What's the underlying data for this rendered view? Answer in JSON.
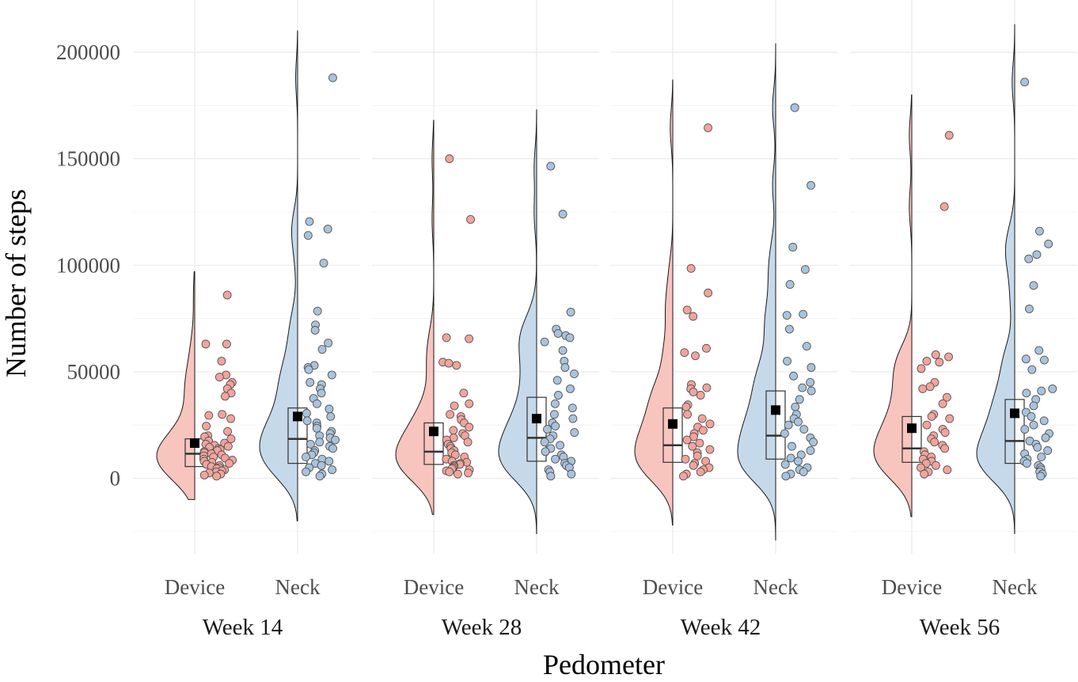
{
  "chart_data": {
    "type": "raincloud",
    "xlabel": "Pedometer",
    "ylabel": "Number of steps",
    "ylim": [
      -25000,
      215000
    ],
    "yticks": [
      0,
      50000,
      100000,
      150000,
      200000
    ],
    "ytick_labels": [
      "0",
      "50000",
      "100000",
      "150000",
      "200000"
    ],
    "groups": [
      "Device",
      "Neck"
    ],
    "group_colors": {
      "Device": "#f8c4be",
      "Neck": "#c6d9ea"
    },
    "point_colors": {
      "Device": "#f2a49c",
      "Neck": "#a9c3dc"
    },
    "panels": [
      {
        "label": "Week 14",
        "series": [
          {
            "group": "Device",
            "mean": 16500,
            "median": 11500,
            "q1": 5500,
            "q3": 18500,
            "violin_min": -10000,
            "violin_max": 97000,
            "points": [
              86000,
              63000,
              63000,
              55000,
              48500,
              47500,
              45000,
              44000,
              42000,
              40000,
              38500,
              30000,
              29500,
              28000,
              24500,
              22000,
              20000,
              19500,
              18500,
              17500,
              16500,
              16000,
              15500,
              15000,
              14500,
              14000,
              13500,
              13000,
              12500,
              12000,
              11500,
              11000,
              10500,
              10000,
              9500,
              9000,
              8500,
              8000,
              7500,
              7000,
              6500,
              6000,
              5500,
              5000,
              4500,
              4000,
              3500,
              3000,
              2500,
              2000,
              1500,
              1000
            ]
          },
          {
            "group": "Neck",
            "mean": 29000,
            "median": 18500,
            "q1": 7000,
            "q3": 33000,
            "violin_min": -20000,
            "violin_max": 210000,
            "points": [
              188000,
              120500,
              117000,
              114000,
              101000,
              78500,
              72000,
              69500,
              63500,
              60500,
              53000,
              52000,
              51000,
              48500,
              45000,
              44000,
              42000,
              40000,
              37500,
              35000,
              32500,
              30500,
              29000,
              27000,
              26000,
              24500,
              23500,
              22000,
              21000,
              20000,
              19000,
              18000,
              17000,
              16000,
              15000,
              14000,
              13000,
              12000,
              11000,
              10000,
              9000,
              8000,
              7000,
              6000,
              5000,
              4000,
              3000,
              2000,
              1000
            ]
          }
        ]
      },
      {
        "label": "Week 28",
        "series": [
          {
            "group": "Device",
            "mean": 22000,
            "median": 12500,
            "q1": 6500,
            "q3": 26000,
            "violin_min": -17000,
            "violin_max": 168000,
            "points": [
              150000,
              121500,
              66000,
              65500,
              54500,
              54000,
              53000,
              40000,
              35000,
              34000,
              30000,
              29000,
              27500,
              26000,
              24000,
              22500,
              21000,
              20000,
              19000,
              18000,
              17000,
              16000,
              15000,
              14000,
              13000,
              12000,
              11000,
              10000,
              9000,
              8000,
              7500,
              7000,
              6500,
              6000,
              5500,
              5000,
              4500,
              4000,
              3500,
              3000,
              2500,
              2000
            ]
          },
          {
            "group": "Neck",
            "mean": 28000,
            "median": 19000,
            "q1": 8000,
            "q3": 38000,
            "violin_min": -26000,
            "violin_max": 173000,
            "points": [
              146500,
              124000,
              78000,
              70000,
              68000,
              67000,
              66000,
              64000,
              60000,
              55000,
              52000,
              49000,
              46000,
              42000,
              39000,
              35000,
              33000,
              30000,
              28000,
              26000,
              24500,
              23000,
              21500,
              20000,
              18500,
              17000,
              15500,
              14000,
              12500,
              11000,
              10000,
              9000,
              8000,
              7000,
              6000,
              5000,
              4000,
              3000,
              2000,
              1000
            ]
          }
        ]
      },
      {
        "label": "Week 42",
        "series": [
          {
            "group": "Device",
            "mean": 25500,
            "median": 15500,
            "q1": 7500,
            "q3": 33000,
            "violin_min": -22000,
            "violin_max": 187000,
            "points": [
              164500,
              98500,
              87000,
              79000,
              76000,
              61000,
              59000,
              57500,
              44000,
              42500,
              42000,
              40500,
              39000,
              34500,
              33500,
              30000,
              28000,
              25500,
              24000,
              22500,
              21000,
              19500,
              18000,
              16500,
              15000,
              13500,
              12000,
              10500,
              9000,
              8000,
              7000,
              6000,
              5000,
              4000,
              3000,
              2000,
              1000
            ]
          },
          {
            "group": "Neck",
            "mean": 32000,
            "median": 20000,
            "q1": 9000,
            "q3": 41000,
            "violin_min": -29000,
            "violin_max": 204000,
            "points": [
              174000,
              137500,
              108500,
              98000,
              91000,
              77000,
              76500,
              70000,
              62000,
              55000,
              52000,
              48000,
              45000,
              42500,
              41000,
              37000,
              33500,
              30000,
              28000,
              26500,
              25000,
              23000,
              21000,
              19000,
              17000,
              15000,
              13000,
              11000,
              9500,
              8000,
              6500,
              5000,
              4000,
              3000,
              2000,
              1000
            ]
          }
        ]
      },
      {
        "label": "Week 56",
        "series": [
          {
            "group": "Device",
            "mean": 23500,
            "median": 14000,
            "q1": 7500,
            "q3": 29000,
            "violin_min": -18000,
            "violin_max": 180000,
            "points": [
              161000,
              127500,
              58000,
              57000,
              55000,
              54500,
              51500,
              45000,
              43000,
              42000,
              38000,
              35000,
              30000,
              29000,
              28000,
              25000,
              23000,
              21500,
              20000,
              18500,
              17000,
              15500,
              14000,
              12500,
              11000,
              10000,
              9000,
              8000,
              7000,
              6000,
              5000,
              4000,
              3000,
              2000
            ]
          },
          {
            "group": "Neck",
            "mean": 30500,
            "median": 17500,
            "q1": 7000,
            "q3": 37000,
            "violin_min": -26000,
            "violin_max": 213000,
            "points": [
              186000,
              116000,
              110000,
              105000,
              103000,
              90500,
              79500,
              60000,
              56000,
              55500,
              51000,
              42000,
              41000,
              40000,
              37000,
              34000,
              31000,
              29000,
              27000,
              25000,
              23000,
              21000,
              19000,
              17500,
              16000,
              14500,
              13000,
              11500,
              10000,
              9000,
              8000,
              7000,
              6000,
              5000,
              4000,
              3000,
              2000,
              1000
            ]
          }
        ]
      }
    ]
  }
}
